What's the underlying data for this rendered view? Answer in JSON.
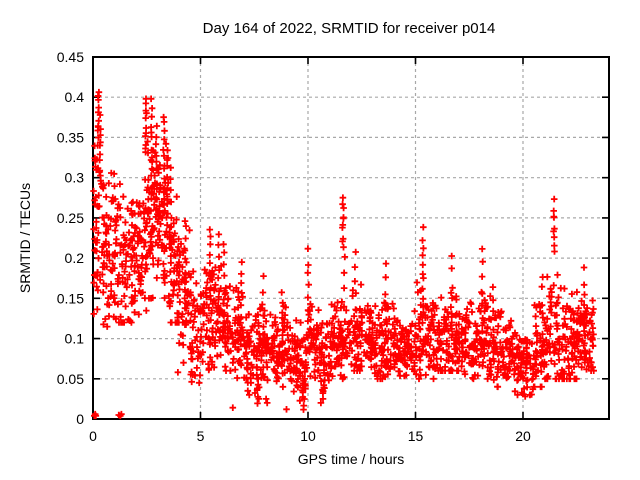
{
  "page": {
    "background": "#ffffff"
  },
  "chart_data": {
    "type": "scatter",
    "title": "Day 164 of 2022, SRMTID for receiver p014",
    "xlabel": "GPS time / hours",
    "ylabel": "SRMTID / TECUs",
    "xlim": [
      0,
      24
    ],
    "ylim": [
      0,
      0.45
    ],
    "grid": true,
    "legend": "none",
    "marker": "plus",
    "style": {
      "marker_color": "#ff0000",
      "grid_color": "#a8a8a8",
      "axis_color": "#000000",
      "background": "#ffffff"
    },
    "xticks": [
      {
        "v": 0,
        "label": "0"
      },
      {
        "v": 5,
        "label": "5"
      },
      {
        "v": 10,
        "label": "10"
      },
      {
        "v": 15,
        "label": "15"
      },
      {
        "v": 20,
        "label": "20"
      }
    ],
    "yticks": [
      {
        "v": 0.0,
        "label": "0"
      },
      {
        "v": 0.05,
        "label": "0.05"
      },
      {
        "v": 0.1,
        "label": "0.1"
      },
      {
        "v": 0.15,
        "label": "0.15"
      },
      {
        "v": 0.2,
        "label": "0.2"
      },
      {
        "v": 0.25,
        "label": "0.25"
      },
      {
        "v": 0.3,
        "label": "0.3"
      },
      {
        "v": 0.35,
        "label": "0.35"
      },
      {
        "v": 0.4,
        "label": "0.4"
      },
      {
        "v": 0.45,
        "label": "0.45"
      }
    ],
    "seed": 20220164,
    "density_bins": [
      [
        0.0,
        0.5,
        55,
        0.1,
        0.34,
        0.235
      ],
      [
        0.5,
        1.0,
        50,
        0.11,
        0.32,
        0.21
      ],
      [
        1.0,
        1.5,
        48,
        0.12,
        0.31,
        0.2
      ],
      [
        1.5,
        2.0,
        48,
        0.12,
        0.29,
        0.19
      ],
      [
        2.0,
        2.5,
        48,
        0.13,
        0.31,
        0.2
      ],
      [
        2.5,
        3.0,
        55,
        0.15,
        0.37,
        0.245
      ],
      [
        3.0,
        3.5,
        55,
        0.15,
        0.355,
        0.25
      ],
      [
        3.5,
        4.0,
        50,
        0.12,
        0.3,
        0.19
      ],
      [
        4.0,
        4.5,
        45,
        0.07,
        0.26,
        0.15
      ],
      [
        4.5,
        5.0,
        44,
        0.045,
        0.21,
        0.115
      ],
      [
        5.0,
        5.5,
        42,
        0.05,
        0.2,
        0.12
      ],
      [
        5.5,
        6.0,
        42,
        0.06,
        0.2,
        0.125
      ],
      [
        6.0,
        6.5,
        42,
        0.06,
        0.19,
        0.115
      ],
      [
        6.5,
        7.0,
        42,
        0.05,
        0.17,
        0.1
      ],
      [
        7.0,
        7.5,
        42,
        0.03,
        0.14,
        0.085
      ],
      [
        7.5,
        8.0,
        42,
        0.025,
        0.15,
        0.08
      ],
      [
        8.0,
        8.5,
        42,
        0.035,
        0.14,
        0.085
      ],
      [
        8.5,
        9.0,
        42,
        0.04,
        0.15,
        0.09
      ],
      [
        9.0,
        9.5,
        42,
        0.03,
        0.13,
        0.08
      ],
      [
        9.5,
        10.0,
        42,
        0.015,
        0.12,
        0.07
      ],
      [
        10.0,
        10.5,
        42,
        0.04,
        0.15,
        0.095
      ],
      [
        10.5,
        11.0,
        42,
        0.02,
        0.13,
        0.075
      ],
      [
        11.0,
        11.5,
        42,
        0.05,
        0.16,
        0.095
      ],
      [
        11.5,
        12.0,
        42,
        0.05,
        0.17,
        0.1
      ],
      [
        12.0,
        12.5,
        42,
        0.06,
        0.18,
        0.105
      ],
      [
        12.5,
        13.0,
        42,
        0.05,
        0.16,
        0.095
      ],
      [
        13.0,
        13.5,
        42,
        0.05,
        0.15,
        0.09
      ],
      [
        13.5,
        14.0,
        42,
        0.05,
        0.16,
        0.095
      ],
      [
        14.0,
        14.5,
        42,
        0.04,
        0.13,
        0.085
      ],
      [
        14.5,
        15.0,
        42,
        0.04,
        0.14,
        0.09
      ],
      [
        15.0,
        15.5,
        42,
        0.05,
        0.17,
        0.1
      ],
      [
        15.5,
        16.0,
        42,
        0.05,
        0.16,
        0.1
      ],
      [
        16.0,
        16.5,
        42,
        0.06,
        0.16,
        0.1
      ],
      [
        16.5,
        17.0,
        42,
        0.06,
        0.17,
        0.105
      ],
      [
        17.0,
        17.5,
        42,
        0.05,
        0.15,
        0.095
      ],
      [
        17.5,
        18.0,
        42,
        0.05,
        0.15,
        0.09
      ],
      [
        18.0,
        18.5,
        42,
        0.05,
        0.17,
        0.1
      ],
      [
        18.5,
        19.0,
        42,
        0.04,
        0.15,
        0.09
      ],
      [
        19.0,
        19.5,
        42,
        0.04,
        0.13,
        0.08
      ],
      [
        19.5,
        20.0,
        42,
        0.03,
        0.12,
        0.07
      ],
      [
        20.0,
        20.5,
        42,
        0.025,
        0.11,
        0.065
      ],
      [
        20.5,
        21.0,
        42,
        0.04,
        0.15,
        0.08
      ],
      [
        21.0,
        21.5,
        42,
        0.05,
        0.18,
        0.1
      ],
      [
        21.5,
        22.0,
        42,
        0.05,
        0.19,
        0.105
      ],
      [
        22.0,
        22.5,
        46,
        0.05,
        0.17,
        0.1
      ],
      [
        22.5,
        23.0,
        48,
        0.06,
        0.18,
        0.11
      ],
      [
        23.0,
        23.3,
        26,
        0.06,
        0.16,
        0.1
      ]
    ],
    "spikes": [
      [
        0.25,
        0.35,
        0.41,
        12
      ],
      [
        0.33,
        0.3,
        0.375,
        8
      ],
      [
        2.46,
        0.33,
        0.4,
        11
      ],
      [
        2.72,
        0.28,
        0.395,
        13
      ],
      [
        2.95,
        0.25,
        0.365,
        11
      ],
      [
        3.3,
        0.27,
        0.375,
        12
      ],
      [
        3.47,
        0.24,
        0.335,
        9
      ],
      [
        3.62,
        0.21,
        0.31,
        8
      ],
      [
        4.3,
        0.17,
        0.25,
        7
      ],
      [
        5.45,
        0.15,
        0.235,
        9
      ],
      [
        5.85,
        0.13,
        0.23,
        8
      ],
      [
        6.1,
        0.12,
        0.22,
        8
      ],
      [
        6.9,
        0.1,
        0.195,
        8
      ],
      [
        7.65,
        0.017,
        0.06,
        6
      ],
      [
        7.9,
        0.08,
        0.175,
        7
      ],
      [
        8.8,
        0.08,
        0.16,
        6
      ],
      [
        9.78,
        0.008,
        0.05,
        6
      ],
      [
        10.02,
        0.12,
        0.21,
        7
      ],
      [
        11.63,
        0.215,
        0.272,
        10
      ],
      [
        11.7,
        0.1,
        0.2,
        6
      ],
      [
        12.2,
        0.1,
        0.205,
        7
      ],
      [
        13.6,
        0.09,
        0.19,
        7
      ],
      [
        15.35,
        0.14,
        0.235,
        10
      ],
      [
        16.7,
        0.1,
        0.2,
        7
      ],
      [
        18.1,
        0.09,
        0.21,
        8
      ],
      [
        18.6,
        0.08,
        0.165,
        6
      ],
      [
        20.9,
        0.07,
        0.18,
        7
      ],
      [
        21.45,
        0.21,
        0.27,
        9
      ],
      [
        22.85,
        0.08,
        0.185,
        8
      ]
    ],
    "outliers": [
      [
        0.06,
        0.004
      ],
      [
        0.1,
        0.006
      ],
      [
        0.13,
        0.004
      ],
      [
        1.2,
        0.005
      ],
      [
        1.27,
        0.004
      ],
      [
        1.32,
        0.006
      ],
      [
        3.95,
        0.058
      ],
      [
        6.5,
        0.014
      ],
      [
        7.2,
        0.035
      ],
      [
        7.27,
        0.03
      ],
      [
        8.05,
        0.025
      ],
      [
        8.1,
        0.02
      ],
      [
        9.0,
        0.012
      ],
      [
        10.6,
        0.02
      ],
      [
        10.7,
        0.025
      ],
      [
        20.1,
        0.028
      ],
      [
        20.32,
        0.03
      ]
    ]
  }
}
